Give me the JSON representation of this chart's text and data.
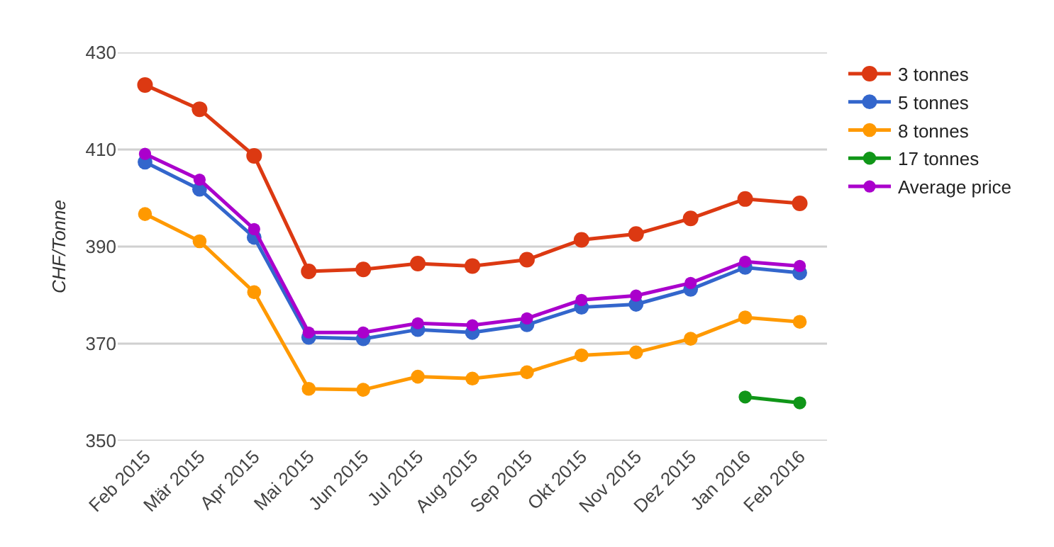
{
  "chart_data": {
    "type": "line",
    "ylabel": "CHF/Tonne",
    "categories": [
      "Feb 2015",
      "Mär 2015",
      "Apr 2015",
      "Mai 2015",
      "Jun 2015",
      "Jul 2015",
      "Aug 2015",
      "Sep 2015",
      "Okt 2015",
      "Nov 2015",
      "Dez 2015",
      "Jan 2016",
      "Feb 2016"
    ],
    "series": [
      {
        "name": "3 tonnes",
        "color": "#dc3912",
        "values": [
          423.3,
          418.3,
          408.7,
          384.9,
          385.3,
          386.5,
          386.0,
          387.3,
          391.4,
          392.6,
          395.8,
          399.8,
          398.9
        ]
      },
      {
        "name": "5 tonnes",
        "color": "#3366cc",
        "values": [
          407.4,
          401.8,
          391.9,
          371.3,
          371.0,
          372.9,
          372.3,
          373.9,
          377.5,
          378.1,
          381.2,
          385.7,
          384.6
        ]
      },
      {
        "name": "8 tonnes",
        "color": "#ff9900",
        "values": [
          396.7,
          391.1,
          380.6,
          360.7,
          360.5,
          363.2,
          362.8,
          364.1,
          367.6,
          368.2,
          371.0,
          375.4,
          374.5
        ]
      },
      {
        "name": "17 tonnes",
        "color": "#109618",
        "values": [
          null,
          null,
          null,
          null,
          null,
          null,
          null,
          null,
          null,
          null,
          null,
          359.0,
          357.8
        ]
      },
      {
        "name": "Average price",
        "color": "#aa00cc",
        "values": [
          409.1,
          403.8,
          393.6,
          372.3,
          372.3,
          374.2,
          373.8,
          375.2,
          379.0,
          379.9,
          382.5,
          386.9,
          386.0
        ]
      }
    ],
    "ylim": [
      350,
      430
    ],
    "yticks": [
      350,
      370,
      390,
      410,
      430
    ],
    "grid": "y",
    "legend": "top right",
    "marker": "circle",
    "line_style": "solid"
  }
}
